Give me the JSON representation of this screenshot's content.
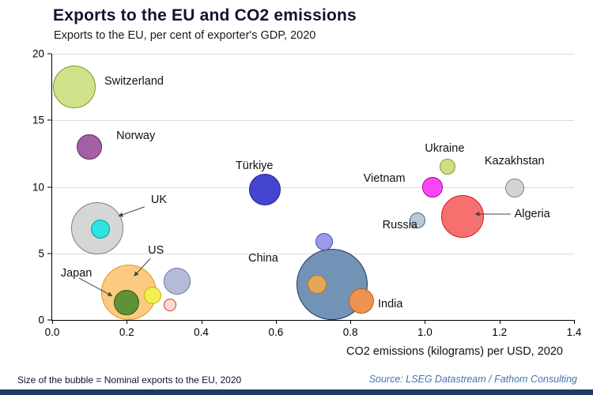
{
  "header": {
    "title": "Exports to the EU and CO2 emissions",
    "subtitle": "Exports to the EU, per cent of exporter's GDP, 2020"
  },
  "footer": {
    "note": "Size of the bubble = Nominal exports to the EU, 2020",
    "source": "Source: LSEG Datastream / Fathom Consulting",
    "bar_color": "#203864"
  },
  "chart_data": {
    "type": "scatter",
    "title": "Exports to the EU and CO2 emissions",
    "subtitle": "Exports to the EU, per cent of exporter's GDP, 2020",
    "xlabel": "CO2 emissions (kilograms) per USD, 2020",
    "ylabel": "Exports to the EU, per cent of exporter's GDP, 2020",
    "size_note": "Size of the bubble = Nominal exports to the EU, 2020",
    "xlim": [
      0,
      1.4
    ],
    "ylim": [
      0,
      20
    ],
    "x_tick_labels": [
      "0.0",
      "0.2",
      "0.4",
      "0.6",
      "0.8",
      "1.0",
      "1.2",
      "1.4"
    ],
    "y_tick_labels": [
      "0",
      "5",
      "10",
      "15",
      "20"
    ],
    "grid": "horizontal",
    "legend": "none",
    "bubbles": [
      {
        "name": "switzerland",
        "x": 0.06,
        "y": 17.5,
        "r": 27,
        "fill": "#cfe28a",
        "stroke": "#7f9a30"
      },
      {
        "name": "norway",
        "x": 0.1,
        "y": 13.0,
        "r": 16,
        "fill": "#a55fa5",
        "stroke": "#5f2a60"
      },
      {
        "name": "uk",
        "x": 0.12,
        "y": 6.9,
        "r": 33,
        "fill": "#d6d6d6",
        "stroke": "#7f7f7f"
      },
      {
        "name": "uk-inner",
        "x": 0.13,
        "y": 6.8,
        "r": 12,
        "fill": "#2ee2e2",
        "stroke": "#00a0a0"
      },
      {
        "name": "turkiye",
        "x": 0.57,
        "y": 9.8,
        "r": 20,
        "fill": "#4545cf",
        "stroke": "#202090"
      },
      {
        "name": "ukraine",
        "x": 1.06,
        "y": 11.5,
        "r": 10,
        "fill": "#cde080",
        "stroke": "#7f9a30"
      },
      {
        "name": "vietnam",
        "x": 1.02,
        "y": 10.0,
        "r": 13,
        "fill": "#fb46f5",
        "stroke": "#b000b0"
      },
      {
        "name": "kazakhstan",
        "x": 1.24,
        "y": 9.9,
        "r": 12,
        "fill": "#d4d4d4",
        "stroke": "#808080"
      },
      {
        "name": "russia",
        "x": 0.98,
        "y": 7.5,
        "r": 10,
        "fill": "#b9c9d9",
        "stroke": "#44688c"
      },
      {
        "name": "algeria",
        "x": 1.1,
        "y": 7.8,
        "r": 27,
        "fill": "#f77070",
        "stroke": "#dd1515"
      },
      {
        "name": "unlabeled-periwinkle",
        "x": 0.73,
        "y": 5.9,
        "r": 11,
        "fill": "#9a9ae8",
        "stroke": "#4848c0"
      },
      {
        "name": "china",
        "x": 0.75,
        "y": 2.7,
        "r": 45,
        "fill": "#7293b6",
        "stroke": "#1a3a5c"
      },
      {
        "name": "china-inner",
        "x": 0.71,
        "y": 2.7,
        "r": 12,
        "fill": "#e3a75c",
        "stroke": "#c87410"
      },
      {
        "name": "india",
        "x": 0.83,
        "y": 1.4,
        "r": 16,
        "fill": "#ef9250",
        "stroke": "#c05e10"
      },
      {
        "name": "us",
        "x": 0.205,
        "y": 2.1,
        "r": 35,
        "fill": "#fccb80",
        "stroke": "#e2951f"
      },
      {
        "name": "japan",
        "x": 0.2,
        "y": 1.3,
        "r": 16,
        "fill": "#5f9138",
        "stroke": "#2f5a10"
      },
      {
        "name": "unlabeled-lavender",
        "x": 0.335,
        "y": 2.9,
        "r": 17,
        "fill": "#b5bad8",
        "stroke": "#6a70a8"
      },
      {
        "name": "unlabeled-yellow",
        "x": 0.27,
        "y": 1.85,
        "r": 11,
        "fill": "#f2ee55",
        "stroke": "#c0b800"
      },
      {
        "name": "unlabeled-pink",
        "x": 0.315,
        "y": 1.15,
        "r": 8,
        "fill": "#f6ddd4",
        "stroke": "#e03030"
      }
    ],
    "labels": [
      {
        "name": "switzerland",
        "text": "Switzerland",
        "x": 0.14,
        "y": 17.9
      },
      {
        "name": "norway",
        "text": "Norway",
        "x": 0.172,
        "y": 13.8
      },
      {
        "name": "uk",
        "text": "UK",
        "x": 0.265,
        "y": 9.0
      },
      {
        "name": "turkiye",
        "text": "Türkiye",
        "x": 0.492,
        "y": 11.6
      },
      {
        "name": "ukraine",
        "text": "Ukraine",
        "x": 1.0,
        "y": 12.9
      },
      {
        "name": "kazakhstan",
        "text": "Kazakhstan",
        "x": 1.16,
        "y": 11.9
      },
      {
        "name": "vietnam",
        "text": "Vietnam",
        "x": 0.835,
        "y": 10.6
      },
      {
        "name": "russia",
        "text": "Russia",
        "x": 0.886,
        "y": 7.1
      },
      {
        "name": "algeria",
        "text": "Algeria",
        "x": 1.24,
        "y": 7.95
      },
      {
        "name": "china",
        "text": "China",
        "x": 0.526,
        "y": 4.6
      },
      {
        "name": "india",
        "text": "India",
        "x": 0.874,
        "y": 1.2
      },
      {
        "name": "us",
        "text": "US",
        "x": 0.257,
        "y": 5.2
      },
      {
        "name": "japan",
        "text": "Japan",
        "x": 0.023,
        "y": 3.5
      }
    ],
    "arrows": [
      {
        "name": "uk-arrow",
        "x1": 0.25,
        "y1": 8.5,
        "x2": 0.18,
        "y2": 7.8
      },
      {
        "name": "us-arrow",
        "x1": 0.265,
        "y1": 4.6,
        "x2": 0.222,
        "y2": 3.3
      },
      {
        "name": "japan-arrow",
        "x1": 0.074,
        "y1": 3.15,
        "x2": 0.163,
        "y2": 1.8
      },
      {
        "name": "algeria-arrow",
        "x1": 1.232,
        "y1": 7.95,
        "x2": 1.137,
        "y2": 7.95
      }
    ]
  }
}
